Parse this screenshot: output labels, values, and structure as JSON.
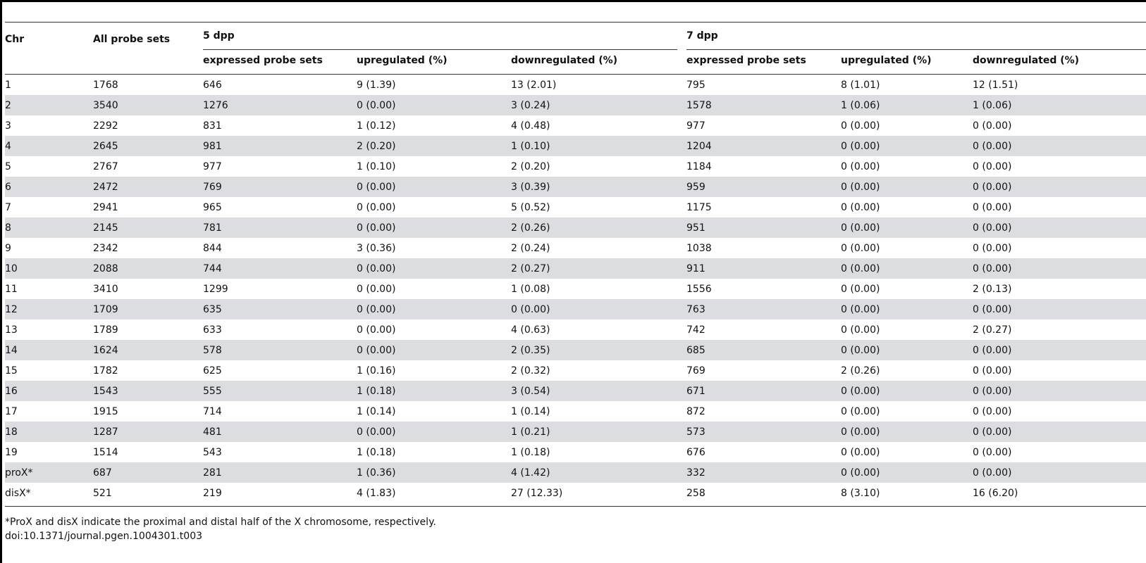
{
  "header": {
    "chr": "Chr",
    "all": "All probe sets",
    "group5": "5 dpp",
    "group7": "7 dpp",
    "expressed": "expressed probe sets",
    "up": "upregulated (%)",
    "down": "downregulated (%)"
  },
  "rows": [
    [
      "1",
      "1768",
      "646",
      "9 (1.39)",
      "13 (2.01)",
      "795",
      "8 (1.01)",
      "12 (1.51)"
    ],
    [
      "2",
      "3540",
      "1276",
      "0 (0.00)",
      "3 (0.24)",
      "1578",
      "1 (0.06)",
      "1 (0.06)"
    ],
    [
      "3",
      "2292",
      "831",
      "1 (0.12)",
      "4 (0.48)",
      "977",
      "0 (0.00)",
      "0 (0.00)"
    ],
    [
      "4",
      "2645",
      "981",
      "2 (0.20)",
      "1 (0.10)",
      "1204",
      "0 (0.00)",
      "0 (0.00)"
    ],
    [
      "5",
      "2767",
      "977",
      "1 (0.10)",
      "2 (0.20)",
      "1184",
      "0 (0.00)",
      "0 (0.00)"
    ],
    [
      "6",
      "2472",
      "769",
      "0 (0.00)",
      "3 (0.39)",
      "959",
      "0 (0.00)",
      "0 (0.00)"
    ],
    [
      "7",
      "2941",
      "965",
      "0 (0.00)",
      "5 (0.52)",
      "1175",
      "0 (0.00)",
      "0 (0.00)"
    ],
    [
      "8",
      "2145",
      "781",
      "0 (0.00)",
      "2 (0.26)",
      "951",
      "0 (0.00)",
      "0 (0.00)"
    ],
    [
      "9",
      "2342",
      "844",
      "3 (0.36)",
      "2 (0.24)",
      "1038",
      "0 (0.00)",
      "0 (0.00)"
    ],
    [
      "10",
      "2088",
      "744",
      "0 (0.00)",
      "2 (0.27)",
      "911",
      "0 (0.00)",
      "0 (0.00)"
    ],
    [
      "11",
      "3410",
      "1299",
      "0 (0.00)",
      "1 (0.08)",
      "1556",
      "0 (0.00)",
      "2 (0.13)"
    ],
    [
      "12",
      "1709",
      "635",
      "0 (0.00)",
      "0 (0.00)",
      "763",
      "0 (0.00)",
      "0 (0.00)"
    ],
    [
      "13",
      "1789",
      "633",
      "0 (0.00)",
      "4 (0.63)",
      "742",
      "0 (0.00)",
      "2 (0.27)"
    ],
    [
      "14",
      "1624",
      "578",
      "0 (0.00)",
      "2 (0.35)",
      "685",
      "0 (0.00)",
      "0 (0.00)"
    ],
    [
      "15",
      "1782",
      "625",
      "1 (0.16)",
      "2 (0.32)",
      "769",
      "2 (0.26)",
      "0 (0.00)"
    ],
    [
      "16",
      "1543",
      "555",
      "1 (0.18)",
      "3 (0.54)",
      "671",
      "0 (0.00)",
      "0 (0.00)"
    ],
    [
      "17",
      "1915",
      "714",
      "1 (0.14)",
      "1 (0.14)",
      "872",
      "0 (0.00)",
      "0 (0.00)"
    ],
    [
      "18",
      "1287",
      "481",
      "0 (0.00)",
      "1 (0.21)",
      "573",
      "0 (0.00)",
      "0 (0.00)"
    ],
    [
      "19",
      "1514",
      "543",
      "1 (0.18)",
      "1 (0.18)",
      "676",
      "0 (0.00)",
      "0 (0.00)"
    ],
    [
      "proX*",
      "687",
      "281",
      "1 (0.36)",
      "4 (1.42)",
      "332",
      "0 (0.00)",
      "0 (0.00)"
    ],
    [
      "disX*",
      "521",
      "219",
      "4 (1.83)",
      "27 (12.33)",
      "258",
      "8 (3.10)",
      "16 (6.20)"
    ]
  ],
  "footnote": "*ProX and disX indicate the proximal and distal half of the X chromosome, respectively.",
  "doi": "doi:10.1371/journal.pgen.1004301.t003",
  "colors": {
    "stripe": "#dcdde0",
    "rule": "#333333"
  }
}
